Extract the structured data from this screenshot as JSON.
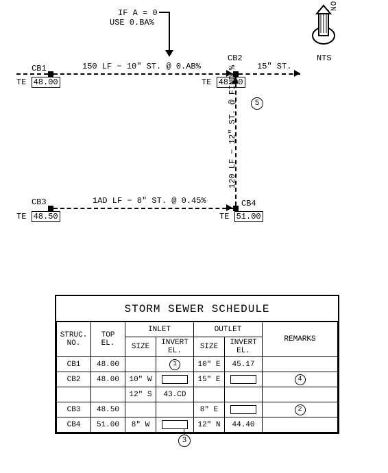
{
  "diagram": {
    "note_if_a": "IF A = 0",
    "note_use": "USE 0.BA%",
    "pipe_150": "150 LF − 10\" ST. @ 0.AB%",
    "pipe_15st": "15\" ST.",
    "pipe_1ad": "1AD LF − 8\" ST. @ 0.45%",
    "pipe_120": "120 LF − 12\" ST. @ FIND %",
    "callout5": "5",
    "nodes": {
      "cb1": {
        "label": "CB1",
        "te": "48.00"
      },
      "cb2": {
        "label": "CB2",
        "te": "48.00"
      },
      "cb3": {
        "label": "CB3",
        "te": "48.50"
      },
      "cb4": {
        "label": "CB4",
        "te": "51.00"
      }
    },
    "north_label": "NORTH",
    "nts_label": "NTS"
  },
  "table": {
    "title": "STORM SEWER SCHEDULE",
    "headers": {
      "struc": "STRUC.\nNO.",
      "top": "TOP\nEL.",
      "inlet": "INLET",
      "outlet": "OUTLET",
      "size": "SIZE",
      "invert": "INVERT\nEL.",
      "remarks": "REMARKS"
    },
    "rows": [
      {
        "struc": "CB1",
        "top": "48.00",
        "in_size": "",
        "in_inv_circ": "1",
        "out_size": "10\" E",
        "out_inv": "45.17",
        "rem_circ": ""
      },
      {
        "struc": "CB2",
        "top": "48.00",
        "in_size": "10\" W",
        "in_inv_box": true,
        "out_size": "15\" E",
        "out_inv_box": true,
        "rem_circ": "4"
      },
      {
        "struc": "",
        "top": "",
        "in_size": "12\" S",
        "in_inv": "43.CD",
        "out_size": "",
        "out_inv": "",
        "rem_circ": ""
      },
      {
        "struc": "CB3",
        "top": "48.50",
        "in_size": "",
        "in_inv": "",
        "out_size": "8\" E",
        "out_inv_box": true,
        "rem_circ": "2"
      },
      {
        "struc": "CB4",
        "top": "51.00",
        "in_size": "8\" W",
        "in_inv_box": true,
        "out_size": "12\" N",
        "out_inv": "44.40",
        "rem_circ": ""
      }
    ],
    "bottom_circ": "3"
  },
  "colors": {
    "ink": "#000000",
    "paper": "#ffffff"
  }
}
